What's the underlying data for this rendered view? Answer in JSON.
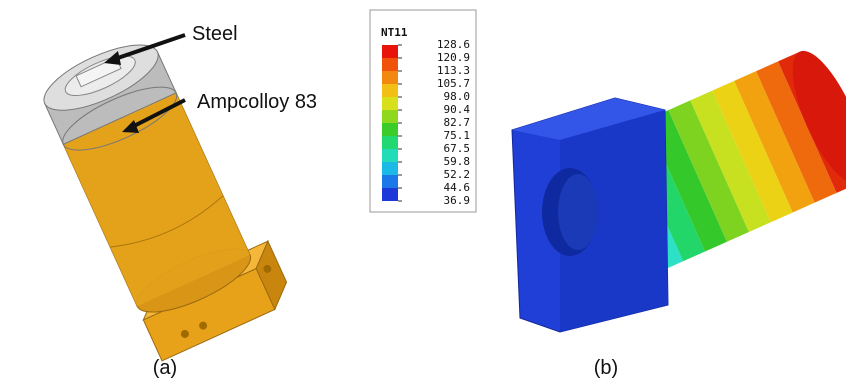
{
  "panel_a": {
    "labels": [
      "Steel",
      "Ampcolloy 83"
    ],
    "caption": "(a)"
  },
  "legend": {
    "title": "NT11",
    "values": [
      "128.6",
      "120.9",
      "113.3",
      "105.7",
      "98.0",
      "90.4",
      "82.7",
      "75.1",
      "67.5",
      "59.8",
      "52.2",
      "44.6",
      "36.9"
    ]
  },
  "panel_b": {
    "caption": "(b)"
  }
}
